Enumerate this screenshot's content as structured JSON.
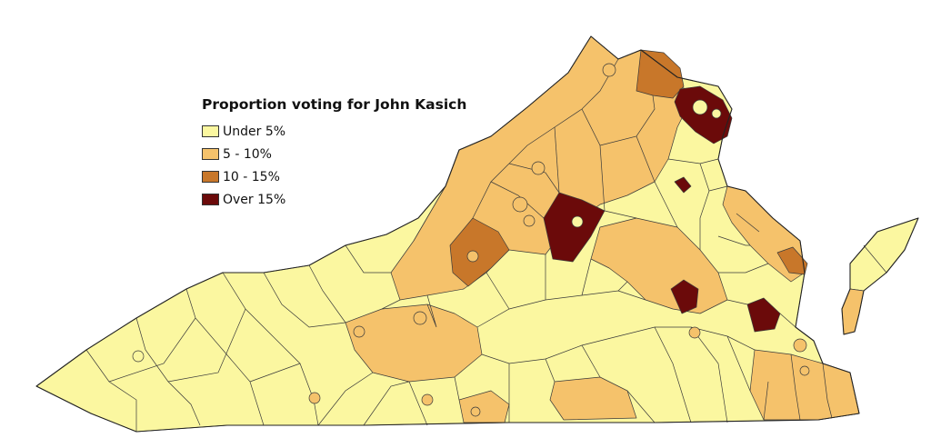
{
  "legend": {
    "title": "Proportion voting for John Kasich",
    "items": [
      {
        "label": "Under 5%",
        "color": "#fbf7a0"
      },
      {
        "label": "5 - 10%",
        "color": "#f5c26b"
      },
      {
        "label": "10 - 15%",
        "color": "#c8772a"
      },
      {
        "label": "Over 15%",
        "color": "#6b0a0a"
      }
    ]
  },
  "colors": {
    "under5": "#fbf7a0",
    "from5to10": "#f5c26b",
    "from10to15": "#c8772a",
    "over15": "#6b0a0a",
    "border": "#3a3a3a"
  }
}
